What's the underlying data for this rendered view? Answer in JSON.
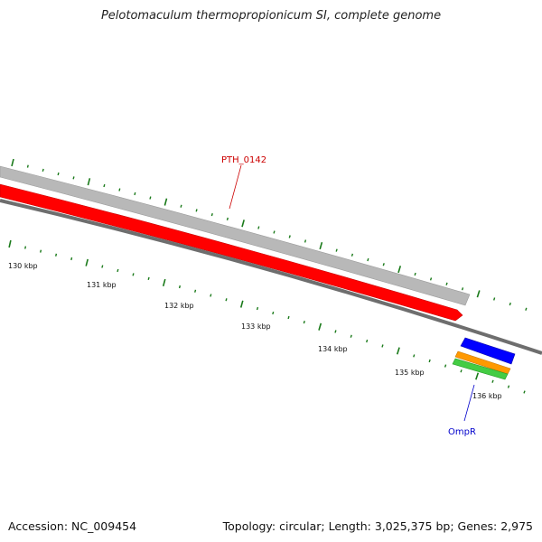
{
  "title": "Pelotomaculum thermopropionicum SI, complete genome",
  "accession": "Accession: NC_009454",
  "summary": "Topology: circular; Length: 3,025,375 bp; Genes: 2,975",
  "ticks": [
    "130 kbp",
    "131 kbp",
    "132 kbp",
    "133 kbp",
    "134 kbp",
    "135 kbp",
    "136 kbp"
  ],
  "features": {
    "pth": {
      "label": "PTH_0142",
      "color": "#cc0000"
    },
    "ompr": {
      "label": "OmpR",
      "color": "#0000cc"
    }
  },
  "colors": {
    "tick": "#1a7a1a",
    "backbone": "#6e6e6e",
    "grey_feature": "#b8b8b8",
    "red_feature": "#ff0000",
    "blue_feature": "#0000ff",
    "orange_feature": "#ff9900",
    "green_feature": "#44cc44"
  }
}
